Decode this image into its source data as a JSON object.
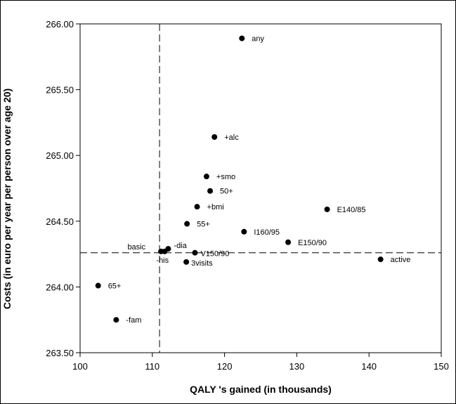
{
  "chart_data": {
    "type": "scatter",
    "xlabel": "QALY 's gained (in thousands)",
    "ylabel": "Costs (in euro per year per person over age 20)",
    "xlim": [
      100,
      150
    ],
    "ylim": [
      263.5,
      266.0
    ],
    "x_ticks": [
      "100",
      "110",
      "120",
      "130",
      "140",
      "150"
    ],
    "y_ticks": [
      "263.50",
      "264.00",
      "264.50",
      "265.00",
      "265.50",
      "266.00"
    ],
    "grid": false,
    "reference_lines": {
      "x": 111,
      "y": 264.26
    },
    "points": [
      {
        "label": "any",
        "x": 122.4,
        "y": 265.89
      },
      {
        "label": "+alc",
        "x": 118.6,
        "y": 265.14
      },
      {
        "label": "+smo",
        "x": 117.5,
        "y": 264.84
      },
      {
        "label": "50+",
        "x": 118.0,
        "y": 264.73
      },
      {
        "label": "+bmi",
        "x": 116.2,
        "y": 264.61
      },
      {
        "label": "E140/85",
        "x": 134.2,
        "y": 264.59
      },
      {
        "label": "55+",
        "x": 114.8,
        "y": 264.48
      },
      {
        "label": "I160/95",
        "x": 122.7,
        "y": 264.42
      },
      {
        "label": "E150/90",
        "x": 128.8,
        "y": 264.34
      },
      {
        "label": "basic",
        "x": 111.2,
        "y": 264.27
      },
      {
        "label": "-dia",
        "x": 112.2,
        "y": 264.29
      },
      {
        "label": "V150/90",
        "x": 115.9,
        "y": 264.26
      },
      {
        "label": "-his",
        "x": 111.7,
        "y": 264.27
      },
      {
        "label": "3visits",
        "x": 114.7,
        "y": 264.19
      },
      {
        "label": "active",
        "x": 141.6,
        "y": 264.21
      },
      {
        "label": "65+",
        "x": 102.5,
        "y": 264.01
      },
      {
        "label": "-fam",
        "x": 105.0,
        "y": 263.75
      }
    ]
  }
}
